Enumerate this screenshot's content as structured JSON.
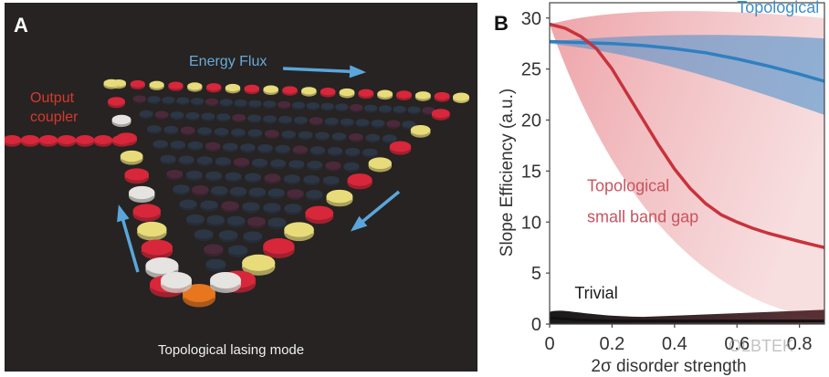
{
  "panel_a": {
    "label": "A",
    "energy_flux": "Energy Flux",
    "output_coupler_line1": "Output",
    "output_coupler_line2": "coupler",
    "caption": "Topological lasing mode",
    "colors": {
      "background": "#262322",
      "arrow": "#5aa6dc",
      "coupler_text": "#d6392e",
      "flux_text": "#6aa9d8",
      "edge_red": "#d8263a",
      "edge_yellow": "#e8dc7a",
      "edge_white": "#e6e4e0",
      "bulk_dark": "#2c3644",
      "corner_orange": "#e8761e"
    }
  },
  "panel_b": {
    "label": "B",
    "watermark": "OLBTEK"
  },
  "chart_data": {
    "type": "line",
    "title": "",
    "xlabel": "2σ disorder strength",
    "ylabel": "Slope Efficiency (a.u.)",
    "xlim": [
      0,
      0.88
    ],
    "ylim": [
      0,
      31.5
    ],
    "xticks": [
      0,
      0.2,
      0.4,
      0.6,
      0.8
    ],
    "xtick_labels": [
      "0",
      "0.2",
      "0.4",
      "0.6",
      "0.8"
    ],
    "yticks": [
      0,
      5,
      10,
      15,
      20,
      25,
      30
    ],
    "ytick_labels": [
      "0",
      "5",
      "10",
      "15",
      "20",
      "25",
      "30"
    ],
    "grid": false,
    "annotations": [
      {
        "text": "Topological",
        "x": 0.6,
        "y": 30.5,
        "color": "#3f8fc8"
      },
      {
        "text": "Topological",
        "x": 0.12,
        "y": 13,
        "color": "#c9535e"
      },
      {
        "text": "small band gap",
        "x": 0.12,
        "y": 10,
        "color": "#c9535e"
      },
      {
        "text": "Trivial",
        "x": 0.08,
        "y": 2.5,
        "color": "#1a1a1a"
      }
    ],
    "series": [
      {
        "name": "Topological",
        "color": "#2f80c0",
        "x": [
          0,
          0.1,
          0.2,
          0.3,
          0.4,
          0.5,
          0.6,
          0.7,
          0.8,
          0.88
        ],
        "values": [
          27.7,
          27.6,
          27.5,
          27.3,
          27.0,
          26.6,
          26.0,
          25.3,
          24.5,
          23.8
        ]
      },
      {
        "name": "Topological small band gap",
        "color": "#c8323c",
        "x": [
          0,
          0.05,
          0.1,
          0.15,
          0.2,
          0.25,
          0.3,
          0.35,
          0.4,
          0.45,
          0.5,
          0.55,
          0.6,
          0.65,
          0.7,
          0.8,
          0.88
        ],
        "values": [
          29.4,
          29.0,
          28.2,
          27.0,
          25.0,
          22.5,
          20.0,
          17.5,
          15.2,
          13.3,
          11.8,
          10.7,
          10.0,
          9.4,
          8.9,
          8.1,
          7.5
        ]
      },
      {
        "name": "Trivial",
        "color": "#111111",
        "x": [
          0,
          0.1,
          0.2,
          0.4,
          0.6,
          0.88
        ],
        "values": [
          0.6,
          0.4,
          0.3,
          0.3,
          0.3,
          0.3
        ]
      }
    ]
  }
}
